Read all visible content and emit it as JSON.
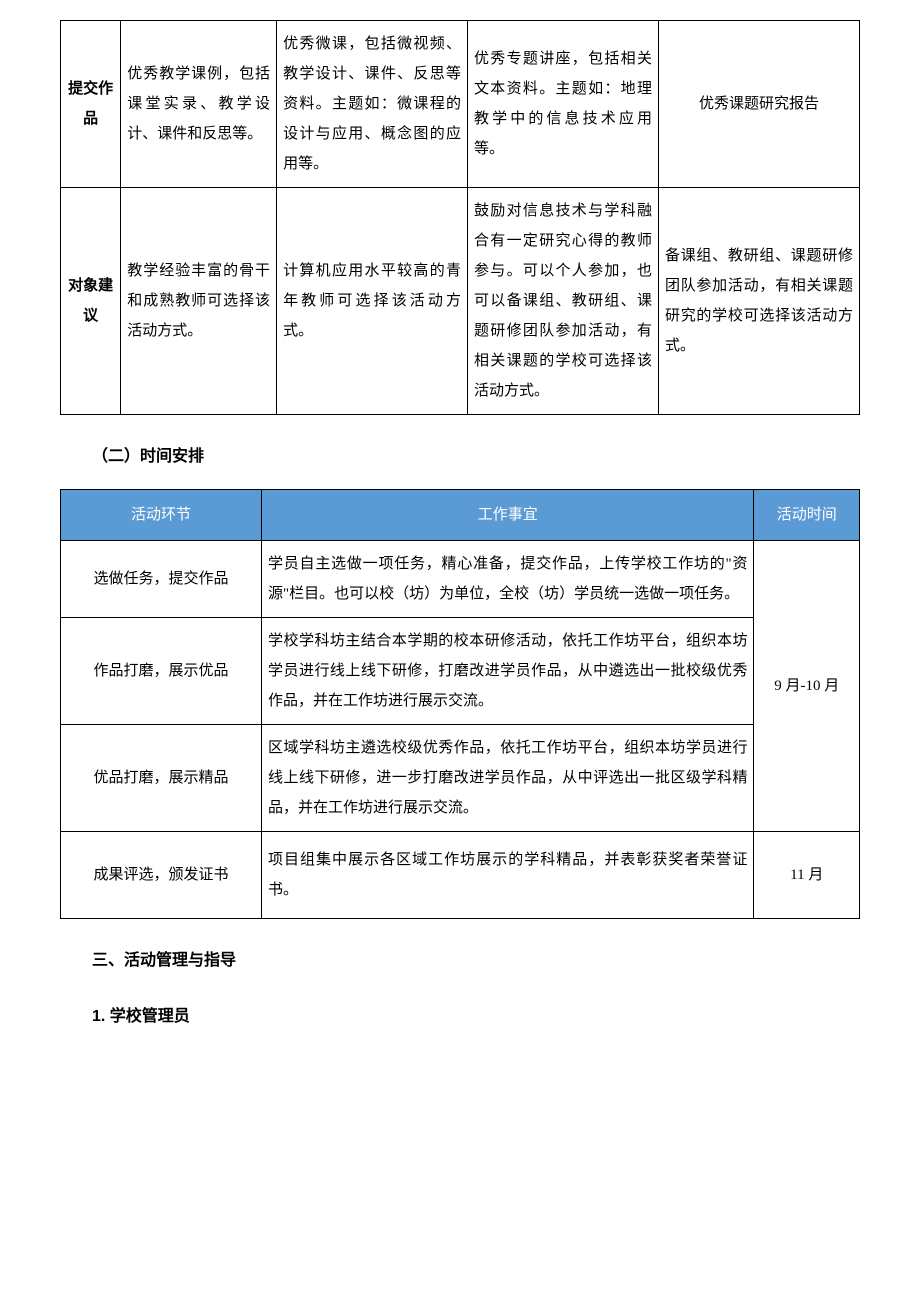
{
  "table1": {
    "row1": {
      "label": "提交作品",
      "c1": "优秀教学课例，包括课堂实录、教学设计、课件和反思等。",
      "c2": "优秀微课，包括微视频、教学设计、课件、反思等资料。主题如：微课程的设计与应用、概念图的应用等。",
      "c3": "优秀专题讲座，包括相关文本资料。主题如：地理教学中的信息技术应用等。",
      "c4": "优秀课题研究报告"
    },
    "row2": {
      "label": "对象建议",
      "c1": "教学经验丰富的骨干和成熟教师可选择该活动方式。",
      "c2": "计算机应用水平较高的青年教师可选择该活动方式。",
      "c3": "鼓励对信息技术与学科融合有一定研究心得的教师参与。可以个人参加，也可以备课组、教研组、课题研修团队参加活动，有相关课题的学校可选择该活动方式。",
      "c4": "备课组、教研组、课题研修团队参加活动，有相关课题研究的学校可选择该活动方式。"
    }
  },
  "section2_title": "（二）时间安排",
  "table2": {
    "header": {
      "c0": "活动环节",
      "c1": "工作事宜",
      "c2": "活动时间"
    },
    "rows": [
      {
        "stage": "选做任务，提交作品",
        "work": "学员自主选做一项任务，精心准备，提交作品，上传学校工作坊的\"资源\"栏目。也可以校（坊）为单位，全校（坊）学员统一选做一项任务。"
      },
      {
        "stage": "作品打磨，展示优品",
        "work": "学校学科坊主结合本学期的校本研修活动，依托工作坊平台，组织本坊学员进行线上线下研修，打磨改进学员作品，从中遴选出一批校级优秀作品，并在工作坊进行展示交流。"
      },
      {
        "stage": "优品打磨，展示精品",
        "work": "区域学科坊主遴选校级优秀作品，依托工作坊平台，组织本坊学员进行线上线下研修，进一步打磨改进学员作品，从中评选出一批区级学科精品，并在工作坊进行展示交流。"
      },
      {
        "stage": "成果评选，颁发证书",
        "work": "项目组集中展示各区域工作坊展示的学科精品，并表彰获奖者荣誉证书。"
      }
    ],
    "time1": "9 月-10 月",
    "time2": "11 月"
  },
  "section3_title": "三、活动管理与指导",
  "section3_sub": "1. 学校管理员",
  "colors": {
    "header_bg": "#5b9bd5",
    "header_fg": "#ffffff",
    "border": "#000000",
    "text": "#000000",
    "page_bg": "#ffffff"
  },
  "fonts": {
    "body": "SimSun",
    "heading": "SimHei",
    "body_size_pt": 11,
    "heading_size_pt": 12
  }
}
